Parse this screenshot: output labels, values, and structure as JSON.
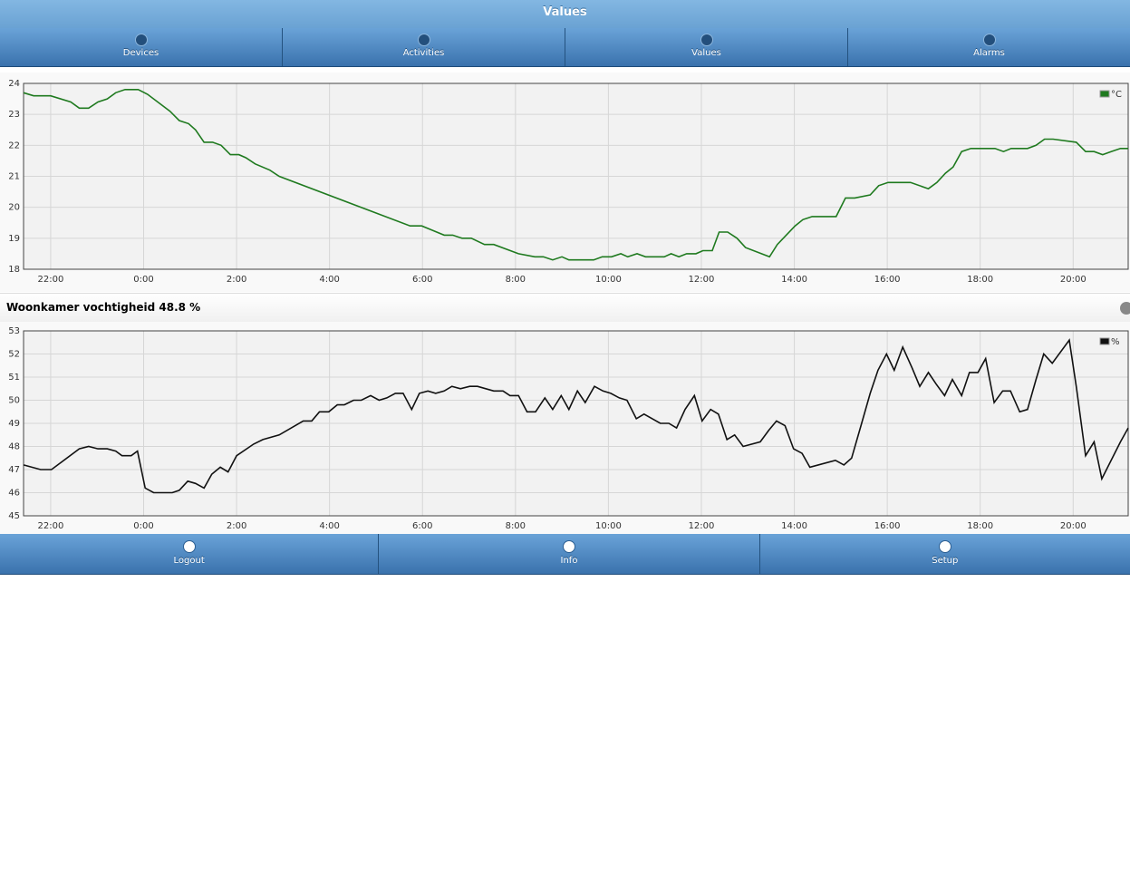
{
  "header": {
    "title": "Values"
  },
  "nav": {
    "tabs": [
      {
        "label": "Devices"
      },
      {
        "label": "Activities"
      },
      {
        "label": "Values"
      },
      {
        "label": "Alarms"
      }
    ]
  },
  "chart_data": [
    {
      "type": "line",
      "grid": true,
      "legend": "top-right",
      "xlim": [
        "21:25",
        "21:11"
      ],
      "ylim": [
        18,
        24
      ],
      "yticks": [
        18,
        19,
        20,
        21,
        22,
        23,
        24
      ],
      "xticks": [
        "22:00",
        "0:00",
        "2:00",
        "4:00",
        "6:00",
        "8:00",
        "10:00",
        "12:00",
        "14:00",
        "16:00",
        "18:00",
        "20:00"
      ],
      "x": [
        "21:25",
        "21:38",
        "22:00",
        "22:26",
        "22:37",
        "22:49",
        "23:01",
        "23:13",
        "23:24",
        "23:36",
        "23:53",
        "0:05",
        "0:34",
        "0:46",
        "0:58",
        "1:07",
        "1:18",
        "1:29",
        "1:40",
        "1:52",
        "2:03",
        "2:12",
        "2:24",
        "2:43",
        "2:55",
        "5:44",
        "5:59",
        "6:28",
        "6:39",
        "6:51",
        "7:03",
        "7:20",
        "7:32",
        "8:04",
        "8:25",
        "8:36",
        "8:48",
        "9:00",
        "9:09",
        "9:41",
        "9:52",
        "10:04",
        "10:16",
        "10:25",
        "10:37",
        "10:48",
        "11:12",
        "11:21",
        "11:31",
        "11:41",
        "11:53",
        "12:02",
        "12:14",
        "12:23",
        "12:34",
        "12:46",
        "12:57",
        "13:28",
        "13:38",
        "14:01",
        "14:11",
        "14:23",
        "14:54",
        "15:06",
        "15:18",
        "15:38",
        "15:49",
        "16:01",
        "16:30",
        "16:53",
        "17:04",
        "17:15",
        "17:25",
        "17:36",
        "17:48",
        "18:19",
        "18:30",
        "18:40",
        "19:01",
        "19:12",
        "19:23",
        "19:34",
        "20:04",
        "20:16",
        "20:27",
        "20:38",
        "20:49",
        "21:01",
        "21:11"
      ],
      "series": [
        {
          "name": "°C",
          "color": "#1f7a1f",
          "values": [
            23.7,
            23.6,
            23.6,
            23.4,
            23.2,
            23.2,
            23.4,
            23.5,
            23.7,
            23.8,
            23.8,
            23.65,
            23.1,
            22.8,
            22.7,
            22.5,
            22.1,
            22.1,
            22.0,
            21.7,
            21.7,
            21.6,
            21.4,
            21.2,
            21.0,
            19.4,
            19.4,
            19.1,
            19.1,
            19.0,
            19.0,
            18.8,
            18.8,
            18.5,
            18.4,
            18.4,
            18.3,
            18.4,
            18.3,
            18.3,
            18.4,
            18.4,
            18.5,
            18.4,
            18.5,
            18.4,
            18.4,
            18.5,
            18.4,
            18.5,
            18.5,
            18.6,
            18.6,
            19.2,
            19.2,
            19.0,
            18.7,
            18.4,
            18.8,
            19.4,
            19.6,
            19.7,
            19.7,
            20.3,
            20.3,
            20.4,
            20.7,
            20.8,
            20.8,
            20.6,
            20.8,
            21.1,
            21.3,
            21.8,
            21.9,
            21.9,
            21.8,
            21.9,
            21.9,
            22.0,
            22.2,
            22.2,
            22.1,
            21.8,
            21.8,
            21.7,
            21.8,
            21.9,
            21.9
          ]
        }
      ]
    },
    {
      "type": "line",
      "title": "Woonkamer vochtigheid 48.8 %",
      "grid": true,
      "legend": "top-right",
      "xlim": [
        "21:25",
        "21:11"
      ],
      "ylim": [
        45,
        53
      ],
      "yticks": [
        45,
        46,
        47,
        48,
        49,
        50,
        51,
        52,
        53
      ],
      "xticks": [
        "22:00",
        "0:00",
        "2:00",
        "4:00",
        "6:00",
        "8:00",
        "10:00",
        "12:00",
        "14:00",
        "16:00",
        "18:00",
        "20:00"
      ],
      "x": [
        "21:25",
        "21:47",
        "22:01",
        "22:37",
        "22:49",
        "23:01",
        "23:13",
        "23:24",
        "23:32",
        "23:44",
        "23:52",
        "0:02",
        "0:13",
        "0:37",
        "0:46",
        "0:57",
        "1:07",
        "1:18",
        "1:28",
        "1:39",
        "1:49",
        "2:00",
        "2:22",
        "2:34",
        "2:55",
        "3:26",
        "3:37",
        "3:47",
        "3:59",
        "4:10",
        "4:19",
        "4:31",
        "4:41",
        "4:53",
        "5:04",
        "5:14",
        "5:25",
        "5:35",
        "5:46",
        "5:56",
        "6:07",
        "6:17",
        "6:28",
        "6:38",
        "6:49",
        "7:01",
        "7:11",
        "7:32",
        "7:44",
        "7:53",
        "8:04",
        "8:15",
        "8:26",
        "8:38",
        "8:48",
        "8:59",
        "9:09",
        "9:20",
        "9:30",
        "9:42",
        "9:53",
        "10:03",
        "10:14",
        "10:24",
        "10:36",
        "10:46",
        "11:07",
        "11:18",
        "11:28",
        "11:39",
        "11:51",
        "12:01",
        "12:12",
        "12:22",
        "12:33",
        "12:43",
        "12:54",
        "13:16",
        "13:27",
        "13:37",
        "13:48",
        "13:59",
        "14:10",
        "14:20",
        "14:53",
        "15:04",
        "15:14",
        "15:26",
        "15:38",
        "15:48",
        "15:59",
        "16:09",
        "16:20",
        "16:32",
        "16:42",
        "16:53",
        "17:03",
        "17:14",
        "17:24",
        "17:36",
        "17:46",
        "17:57",
        "18:07",
        "18:18",
        "18:29",
        "18:39",
        "18:51",
        "19:01",
        "19:12",
        "19:22",
        "19:33",
        "19:55",
        "20:04",
        "20:16",
        "20:27",
        "20:37",
        "21:01",
        "21:11"
      ],
      "series": [
        {
          "name": "%",
          "color": "#111111",
          "values": [
            47.2,
            47.0,
            47.0,
            47.9,
            48.0,
            47.9,
            47.9,
            47.8,
            47.6,
            47.6,
            47.8,
            46.2,
            46.0,
            46.0,
            46.1,
            46.5,
            46.4,
            46.2,
            46.8,
            47.1,
            46.9,
            47.6,
            48.1,
            48.3,
            48.5,
            49.1,
            49.1,
            49.5,
            49.5,
            49.8,
            49.8,
            50.0,
            50.0,
            50.2,
            50.0,
            50.1,
            50.3,
            50.3,
            49.6,
            50.3,
            50.4,
            50.3,
            50.4,
            50.6,
            50.5,
            50.6,
            50.6,
            50.4,
            50.4,
            50.2,
            50.2,
            49.5,
            49.5,
            50.1,
            49.6,
            50.2,
            49.6,
            50.4,
            49.9,
            50.6,
            50.4,
            50.3,
            50.1,
            50.0,
            49.2,
            49.4,
            49.0,
            49.0,
            48.8,
            49.6,
            50.2,
            49.1,
            49.6,
            49.4,
            48.3,
            48.5,
            48.0,
            48.2,
            48.7,
            49.1,
            48.9,
            47.9,
            47.7,
            47.1,
            47.4,
            47.2,
            47.5,
            48.9,
            50.3,
            51.3,
            52.0,
            51.3,
            52.3,
            51.4,
            50.6,
            51.2,
            50.7,
            50.2,
            50.9,
            50.2,
            51.2,
            51.2,
            51.8,
            49.9,
            50.4,
            50.4,
            49.5,
            49.6,
            50.9,
            52.0,
            51.6,
            52.6,
            50.6,
            47.6,
            48.2,
            46.6,
            48.2,
            48.8
          ]
        }
      ]
    }
  ],
  "footer": {
    "buttons": [
      {
        "label": "Logout"
      },
      {
        "label": "Info"
      },
      {
        "label": "Setup"
      }
    ]
  }
}
